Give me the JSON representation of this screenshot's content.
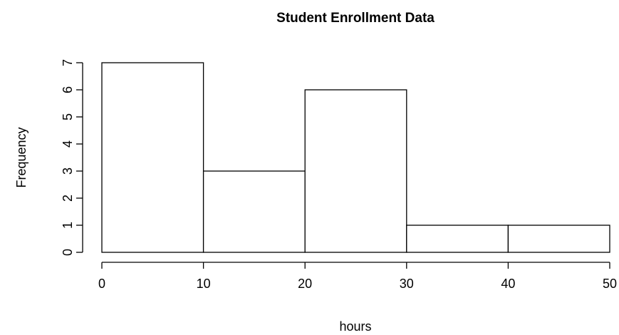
{
  "chart_data": {
    "type": "bar",
    "title": "Student Enrollment Data",
    "xlabel": "hours",
    "ylabel": "Frequency",
    "bins": [
      {
        "start": 0,
        "end": 10,
        "count": 7
      },
      {
        "start": 10,
        "end": 20,
        "count": 3
      },
      {
        "start": 20,
        "end": 30,
        "count": 6
      },
      {
        "start": 30,
        "end": 40,
        "count": 1
      },
      {
        "start": 40,
        "end": 50,
        "count": 1
      }
    ],
    "x_ticks": [
      0,
      10,
      20,
      30,
      40,
      50
    ],
    "y_ticks": [
      0,
      1,
      2,
      3,
      4,
      5,
      6,
      7
    ],
    "xlim": [
      0,
      50
    ],
    "ylim": [
      0,
      7
    ],
    "grid": false,
    "legend": "none"
  }
}
